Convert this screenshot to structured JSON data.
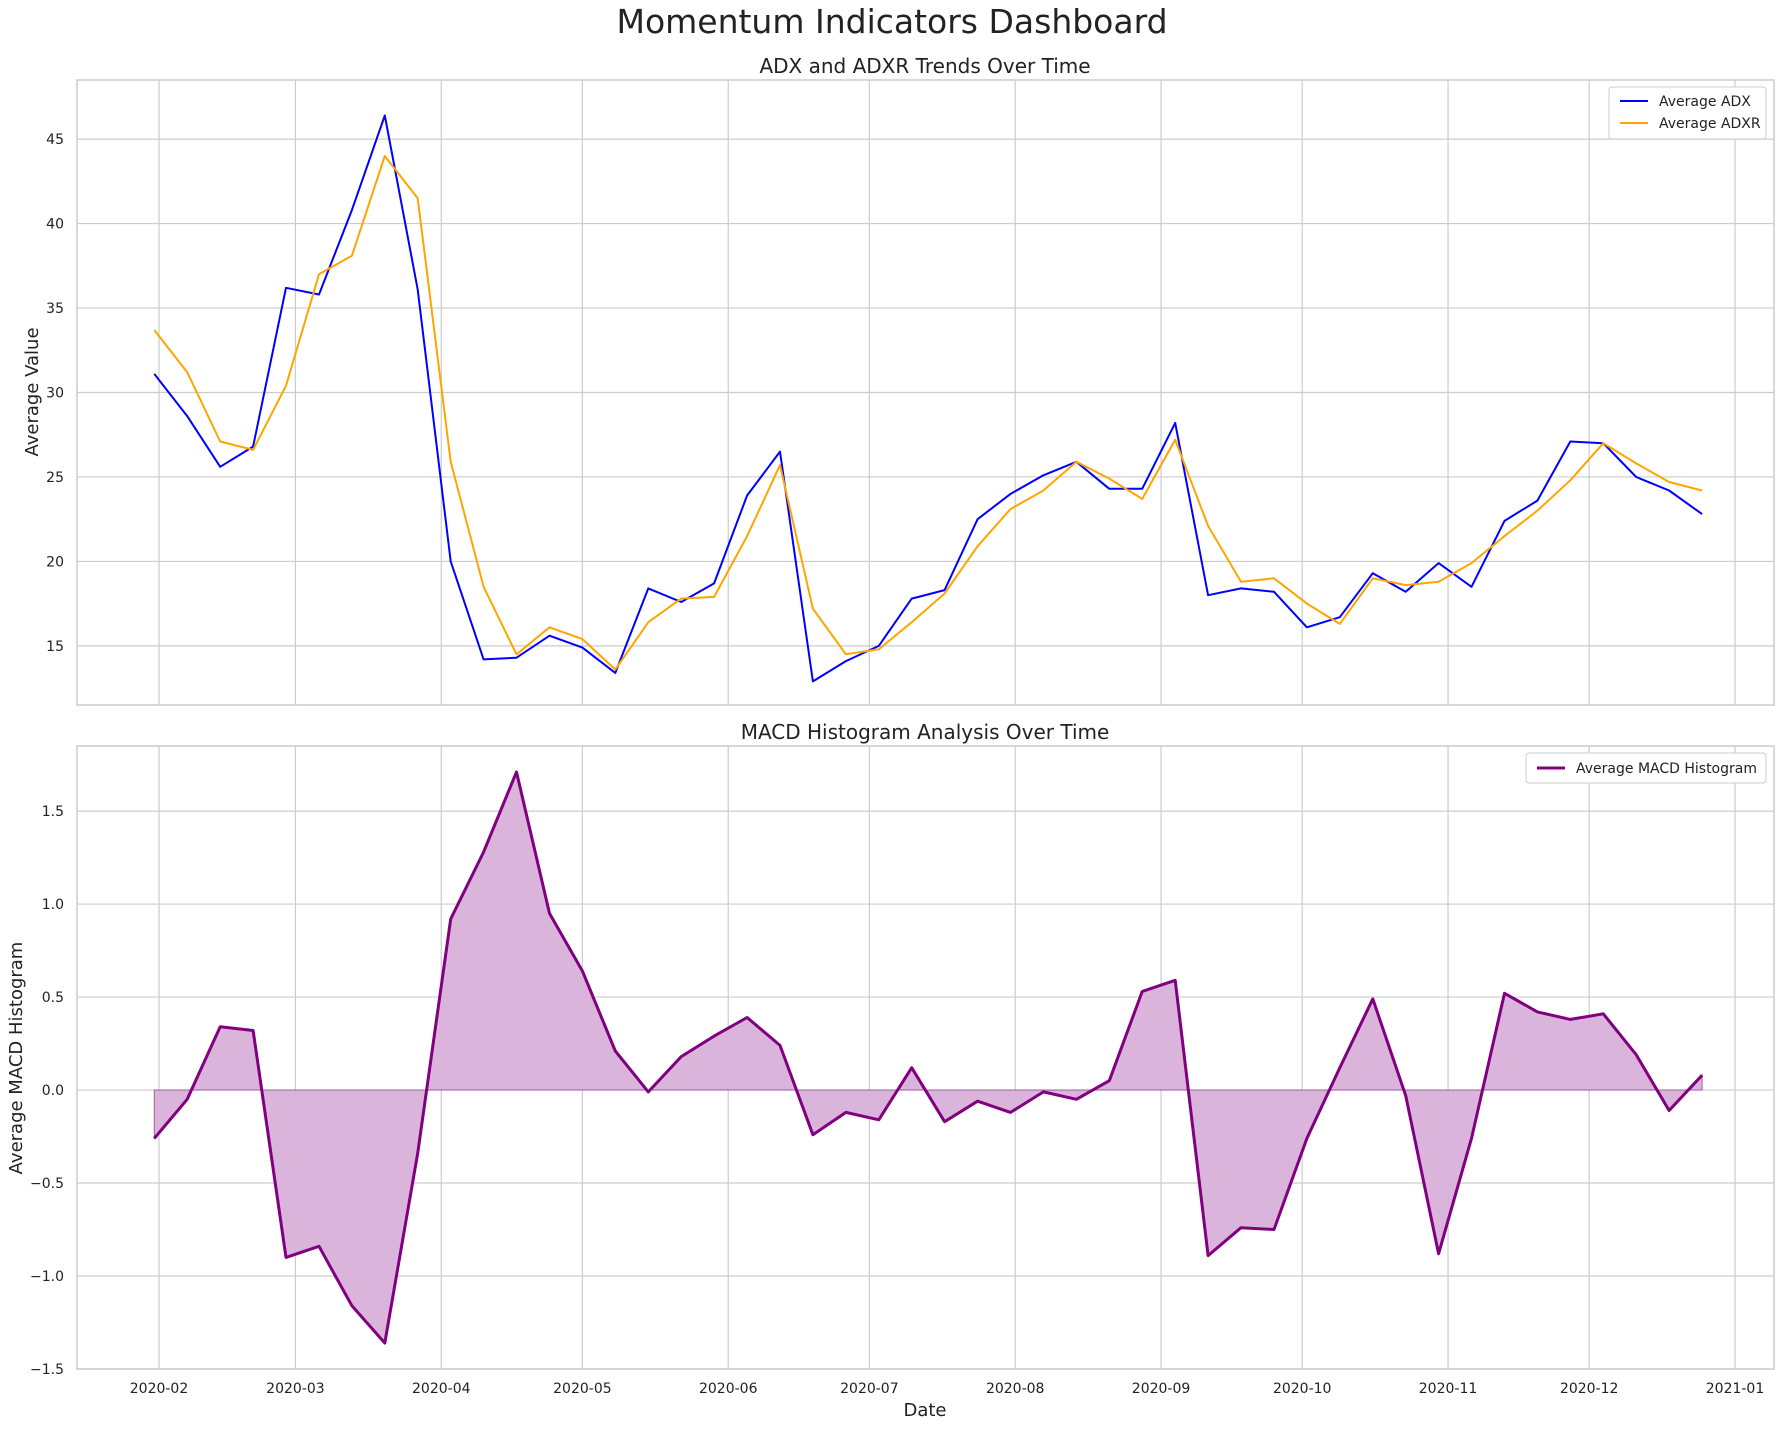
{
  "suptitle": "Momentum Indicators Dashboard",
  "colors": {
    "adx": "#0000ff",
    "adxr": "#ffa500",
    "macd": "#800080",
    "macd_fill": "#d8b0d8",
    "grid": "#cccccc",
    "axes": "#cccccc"
  },
  "chart_data": [
    {
      "type": "line",
      "title": "ADX and ADXR Trends Over Time",
      "xlabel": "",
      "ylabel": "Average Value",
      "x": [
        "2020-01-31",
        "2020-02-07",
        "2020-02-14",
        "2020-02-21",
        "2020-02-28",
        "2020-03-06",
        "2020-03-13",
        "2020-03-20",
        "2020-03-27",
        "2020-04-03",
        "2020-04-10",
        "2020-04-17",
        "2020-04-24",
        "2020-05-01",
        "2020-05-08",
        "2020-05-15",
        "2020-05-22",
        "2020-05-29",
        "2020-06-05",
        "2020-06-12",
        "2020-06-19",
        "2020-06-26",
        "2020-07-03",
        "2020-07-10",
        "2020-07-17",
        "2020-07-24",
        "2020-07-31",
        "2020-08-07",
        "2020-08-14",
        "2020-08-21",
        "2020-08-28",
        "2020-09-04",
        "2020-09-11",
        "2020-09-18",
        "2020-09-25",
        "2020-10-02",
        "2020-10-09",
        "2020-10-16",
        "2020-10-23",
        "2020-10-30",
        "2020-11-06",
        "2020-11-13",
        "2020-11-20",
        "2020-11-27",
        "2020-12-04",
        "2020-12-11",
        "2020-12-18",
        "2020-12-25"
      ],
      "x_ticks": [
        "2020-02",
        "2020-03",
        "2020-04",
        "2020-05",
        "2020-06",
        "2020-07",
        "2020-08",
        "2020-09",
        "2020-10",
        "2020-11",
        "2020-12",
        "2021-01"
      ],
      "y_ticks": [
        "15",
        "20",
        "25",
        "30",
        "35",
        "40",
        "45"
      ],
      "ylim": [
        11.5,
        48.5
      ],
      "grid": true,
      "legend_position": "top-right",
      "series": [
        {
          "name": "Average ADX",
          "values": [
            31.1,
            28.6,
            25.6,
            26.8,
            36.2,
            35.8,
            40.8,
            46.4,
            36.1,
            20.0,
            14.2,
            14.3,
            15.6,
            14.9,
            13.4,
            18.4,
            17.6,
            18.7,
            23.9,
            26.5,
            12.9,
            14.1,
            15.0,
            17.8,
            18.3,
            22.5,
            24.0,
            25.1,
            25.9,
            24.3,
            24.3,
            28.2,
            18.0,
            18.4,
            18.2,
            16.1,
            16.7,
            19.3,
            18.2,
            19.9,
            18.5,
            22.4,
            23.6,
            27.1,
            27.0,
            25.0,
            24.2,
            22.8
          ]
        },
        {
          "name": "Average ADXR",
          "values": [
            33.7,
            31.2,
            27.1,
            26.6,
            30.4,
            37.0,
            38.1,
            44.0,
            41.5,
            25.9,
            18.5,
            14.5,
            16.1,
            15.4,
            13.6,
            16.4,
            17.8,
            17.9,
            21.5,
            25.7,
            17.2,
            14.5,
            14.8,
            16.4,
            18.1,
            20.9,
            23.1,
            24.2,
            25.9,
            24.9,
            23.7,
            27.2,
            22.1,
            18.8,
            19.0,
            17.5,
            16.3,
            19.0,
            18.6,
            18.8,
            19.9,
            21.5,
            23.0,
            24.8,
            27.0,
            25.8,
            24.7,
            24.2
          ]
        }
      ]
    },
    {
      "type": "area",
      "title": "MACD Histogram Analysis Over Time",
      "xlabel": "Date",
      "ylabel": "Average MACD Histogram",
      "y_ticks": [
        "1.5",
        "1.0",
        "0.5",
        "0.0",
        "−0.5",
        "−1.0",
        "−1.5"
      ],
      "ylim": [
        -1.5,
        1.85
      ],
      "grid": true,
      "legend_position": "top-right",
      "series": [
        {
          "name": "Average MACD Histogram",
          "values": [
            -0.26,
            -0.05,
            0.34,
            0.32,
            -0.9,
            -0.84,
            -1.16,
            -1.36,
            -0.34,
            0.92,
            1.28,
            1.71,
            0.95,
            0.64,
            0.21,
            -0.01,
            0.18,
            0.29,
            0.39,
            0.24,
            -0.24,
            -0.12,
            -0.16,
            0.12,
            -0.17,
            -0.06,
            -0.12,
            -0.01,
            -0.05,
            0.05,
            0.53,
            0.59,
            -0.89,
            -0.74,
            -0.75,
            -0.26,
            0.12,
            0.49,
            -0.03,
            -0.88,
            -0.26,
            0.52,
            0.42,
            0.38,
            0.41,
            0.19,
            -0.11,
            0.08
          ]
        }
      ]
    }
  ]
}
